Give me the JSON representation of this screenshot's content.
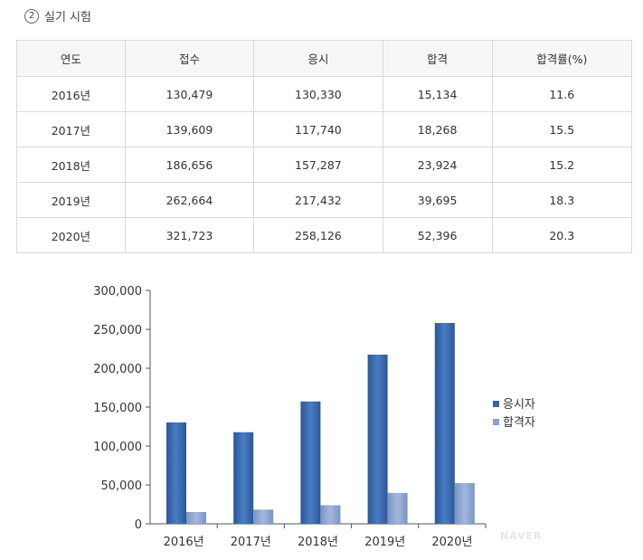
{
  "section": {
    "number": "②",
    "title": "실기 시험"
  },
  "table": {
    "headers": [
      "연도",
      "접수",
      "응시",
      "합격",
      "합격률(%)"
    ],
    "rows": [
      [
        "2016년",
        "130,479",
        "130,330",
        "15,134",
        "11.6"
      ],
      [
        "2017년",
        "139,609",
        "117,740",
        "18,268",
        "15.5"
      ],
      [
        "2018년",
        "186,656",
        "157,287",
        "23,924",
        "15.2"
      ],
      [
        "2019년",
        "262,664",
        "217,432",
        "39,695",
        "18.3"
      ],
      [
        "2020년",
        "321,723",
        "258,126",
        "52,396",
        "20.3"
      ]
    ]
  },
  "chart_data": {
    "type": "bar",
    "categories": [
      "2016년",
      "2017년",
      "2018년",
      "2019년",
      "2020년"
    ],
    "series": [
      {
        "name": "응시자",
        "values": [
          130330,
          117740,
          157287,
          217432,
          258126
        ],
        "color": "#3565a8"
      },
      {
        "name": "합격자",
        "values": [
          15134,
          18268,
          23924,
          39695,
          52396
        ],
        "color": "#8aa3d1"
      }
    ],
    "yticks": [
      "0",
      "50,000",
      "100,000",
      "150,000",
      "200,000",
      "250,000",
      "300,000"
    ],
    "ylim": [
      0,
      300000
    ],
    "grid": false,
    "legend": "right"
  },
  "watermark": "NAVER"
}
